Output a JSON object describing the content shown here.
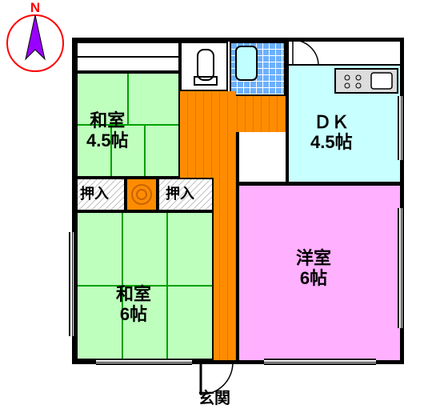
{
  "type": "floorplan",
  "compass": {
    "N": "N",
    "needle_color": "#9a00ff",
    "circle_stroke": "#ff0000"
  },
  "colors": {
    "wall": "#000000",
    "tatami": "#beffbe",
    "tatami_border": "#00a000",
    "dk": "#c8ffff",
    "western": "#ffb0ff",
    "corridor_wood": "#ff8c00",
    "corridor_wood_line": "#c86400",
    "bath_tile": "#6cb0ff",
    "bath_tile_gap": "#ffffff",
    "closet_hatch": "#000000",
    "closet_fill": "#ffffff",
    "kitchen_counter_fill": "#dcdcdc"
  },
  "rooms": {
    "washitsu45": {
      "label": "和室\n4.5帖"
    },
    "washitsu6": {
      "label": "和室\n6帖"
    },
    "dk": {
      "label": "ＤＫ\n4.5帖"
    },
    "youshitsu": {
      "label": "洋室\n6帖"
    },
    "closet1": {
      "label": "押入"
    },
    "closet2": {
      "label": "押入"
    }
  },
  "entrance": {
    "label": "玄関"
  },
  "font": {
    "room_size": 22,
    "closet_size": 18,
    "entrance_size": 20
  }
}
